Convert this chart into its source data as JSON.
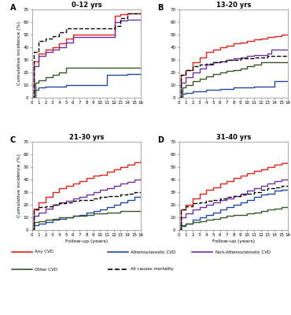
{
  "panels": [
    {
      "label": "A",
      "title": "0-12 yrs",
      "ylim": [
        0,
        70
      ],
      "curves": {
        "any_cvd": {
          "x": [
            0,
            0.3,
            1,
            2,
            3,
            4,
            5,
            6,
            7,
            8,
            9,
            10,
            11,
            12,
            12.2,
            13,
            14,
            15,
            16
          ],
          "y": [
            0,
            29,
            35,
            38,
            40,
            43,
            47,
            50,
            50,
            50,
            50,
            50,
            50,
            50,
            65,
            66,
            67,
            67,
            67
          ],
          "color": "#e32119",
          "lw": 1.0
        },
        "atherosclerotic": {
          "x": [
            0,
            0.5,
            1,
            2,
            3,
            4,
            5,
            6,
            7,
            8,
            9,
            10,
            11,
            12,
            13,
            14,
            15,
            16
          ],
          "y": [
            0,
            6,
            8,
            9,
            9,
            9,
            10,
            10,
            10,
            10,
            10,
            10,
            18,
            18,
            18,
            19,
            19,
            19
          ],
          "color": "#1f49a0",
          "lw": 1.0
        },
        "non_atherosclerotic": {
          "x": [
            0,
            0.3,
            1,
            2,
            3,
            4,
            5,
            6,
            7,
            8,
            9,
            10,
            11,
            12,
            12.2,
            13,
            14,
            15,
            16
          ],
          "y": [
            0,
            25,
            33,
            36,
            38,
            40,
            44,
            48,
            48,
            48,
            48,
            48,
            48,
            48,
            60,
            61,
            62,
            62,
            62
          ],
          "color": "#7030a0",
          "lw": 1.0
        },
        "other_cvd": {
          "x": [
            0,
            0.5,
            1,
            2,
            3,
            4,
            5,
            6,
            7,
            8,
            9,
            10,
            11,
            12,
            13,
            14,
            15,
            16
          ],
          "y": [
            0,
            12,
            14,
            16,
            18,
            20,
            24,
            24,
            24,
            24,
            24,
            24,
            24,
            24,
            24,
            24,
            24,
            24
          ],
          "color": "#375623",
          "lw": 1.0
        },
        "mortality": {
          "x": [
            0,
            0.3,
            1,
            2,
            3,
            4,
            5,
            6,
            7,
            8,
            9,
            10,
            11,
            12,
            12.2,
            13,
            14,
            15,
            16
          ],
          "y": [
            0,
            36,
            45,
            47,
            49,
            52,
            55,
            55,
            55,
            55,
            55,
            55,
            55,
            55,
            57,
            63,
            67,
            67,
            67
          ],
          "color": "#000000",
          "lw": 1.0,
          "linestyle": "--"
        }
      }
    },
    {
      "label": "B",
      "title": "13-20 yrs",
      "ylim": [
        0,
        70
      ],
      "curves": {
        "any_cvd": {
          "x": [
            0,
            0.3,
            1,
            2,
            3,
            4,
            5,
            6,
            7,
            8,
            9,
            10,
            11,
            12,
            13,
            14,
            15,
            16
          ],
          "y": [
            0,
            18,
            22,
            28,
            32,
            36,
            38,
            40,
            41,
            43,
            44,
            45,
            46,
            47,
            48,
            49,
            50,
            50
          ],
          "color": "#e32119",
          "lw": 1.0
        },
        "atherosclerotic": {
          "x": [
            0,
            0.5,
            1,
            2,
            3,
            4,
            5,
            6,
            7,
            8,
            9,
            10,
            11,
            12,
            13,
            14,
            15,
            16
          ],
          "y": [
            0,
            3,
            4,
            5,
            5,
            6,
            6,
            7,
            7,
            8,
            8,
            8,
            9,
            9,
            9,
            13,
            13,
            13
          ],
          "color": "#1f49a0",
          "lw": 1.0
        },
        "non_atherosclerotic": {
          "x": [
            0,
            0.3,
            1,
            2,
            3,
            4,
            5,
            6,
            7,
            8,
            9,
            10,
            11,
            12,
            13,
            13.5,
            14,
            15,
            16
          ],
          "y": [
            0,
            12,
            16,
            20,
            23,
            26,
            28,
            29,
            30,
            31,
            32,
            33,
            34,
            34,
            35,
            38,
            38,
            38,
            38
          ],
          "color": "#7030a0",
          "lw": 1.0
        },
        "other_cvd": {
          "x": [
            0,
            0.5,
            1,
            2,
            3,
            4,
            5,
            6,
            7,
            8,
            9,
            10,
            11,
            12,
            13,
            14,
            15,
            16
          ],
          "y": [
            0,
            8,
            10,
            13,
            15,
            17,
            19,
            20,
            21,
            22,
            23,
            25,
            26,
            28,
            28,
            28,
            28,
            28
          ],
          "color": "#375623",
          "lw": 1.0
        },
        "mortality": {
          "x": [
            0,
            0.3,
            1,
            2,
            3,
            4,
            5,
            6,
            7,
            8,
            9,
            10,
            11,
            12,
            13,
            14,
            15,
            16
          ],
          "y": [
            0,
            18,
            22,
            25,
            26,
            27,
            28,
            29,
            30,
            30,
            31,
            31,
            32,
            32,
            33,
            33,
            33,
            33
          ],
          "color": "#000000",
          "lw": 1.0,
          "linestyle": "--"
        }
      }
    },
    {
      "label": "C",
      "title": "21-30 yrs",
      "ylim": [
        0,
        70
      ],
      "curves": {
        "any_cvd": {
          "x": [
            0,
            0.3,
            1,
            2,
            3,
            4,
            5,
            6,
            7,
            8,
            9,
            10,
            11,
            12,
            13,
            14,
            15,
            16
          ],
          "y": [
            0,
            17,
            22,
            26,
            30,
            33,
            35,
            37,
            39,
            41,
            43,
            44,
            46,
            48,
            50,
            52,
            54,
            56
          ],
          "color": "#e32119",
          "lw": 1.0
        },
        "atherosclerotic": {
          "x": [
            0,
            0.3,
            1,
            2,
            3,
            4,
            5,
            6,
            7,
            8,
            9,
            10,
            11,
            12,
            13,
            14,
            15,
            16
          ],
          "y": [
            0,
            4,
            5,
            6,
            8,
            9,
            10,
            11,
            12,
            14,
            15,
            16,
            18,
            20,
            22,
            24,
            26,
            28
          ],
          "color": "#1f49a0",
          "lw": 1.0
        },
        "non_atherosclerotic": {
          "x": [
            0,
            0.3,
            1,
            2,
            3,
            4,
            5,
            6,
            7,
            8,
            9,
            10,
            11,
            12,
            13,
            14,
            15,
            16
          ],
          "y": [
            0,
            11,
            14,
            17,
            20,
            22,
            23,
            25,
            26,
            28,
            30,
            32,
            33,
            35,
            37,
            38,
            40,
            41
          ],
          "color": "#7030a0",
          "lw": 1.0
        },
        "other_cvd": {
          "x": [
            0,
            0.3,
            1,
            2,
            3,
            4,
            5,
            6,
            7,
            8,
            9,
            10,
            11,
            12,
            13,
            14,
            15,
            16
          ],
          "y": [
            0,
            6,
            7,
            8,
            9,
            10,
            10,
            11,
            11,
            12,
            13,
            13,
            14,
            14,
            15,
            15,
            15,
            15
          ],
          "color": "#375623",
          "lw": 1.0
        },
        "mortality": {
          "x": [
            0,
            0.3,
            1,
            2,
            3,
            4,
            5,
            6,
            7,
            8,
            9,
            10,
            11,
            12,
            13,
            14,
            15,
            16
          ],
          "y": [
            0,
            16,
            18,
            19,
            20,
            21,
            22,
            23,
            24,
            24,
            25,
            26,
            27,
            27,
            28,
            29,
            30,
            30
          ],
          "color": "#000000",
          "lw": 1.0,
          "linestyle": "--"
        }
      }
    },
    {
      "label": "D",
      "title": "31-40 yrs",
      "ylim": [
        0,
        70
      ],
      "curves": {
        "any_cvd": {
          "x": [
            0,
            0.3,
            1,
            2,
            3,
            4,
            5,
            6,
            7,
            8,
            9,
            10,
            11,
            12,
            13,
            14,
            15,
            16
          ],
          "y": [
            0,
            16,
            20,
            25,
            29,
            32,
            34,
            37,
            39,
            41,
            43,
            45,
            47,
            48,
            50,
            52,
            53,
            54
          ],
          "color": "#e32119",
          "lw": 1.0
        },
        "atherosclerotic": {
          "x": [
            0,
            0.3,
            1,
            2,
            3,
            4,
            5,
            6,
            7,
            8,
            9,
            10,
            11,
            12,
            13,
            14,
            15,
            16
          ],
          "y": [
            0,
            3,
            5,
            8,
            10,
            12,
            14,
            16,
            18,
            20,
            22,
            24,
            26,
            28,
            29,
            31,
            32,
            32
          ],
          "color": "#1f49a0",
          "lw": 1.0
        },
        "non_atherosclerotic": {
          "x": [
            0,
            0.3,
            1,
            2,
            3,
            4,
            5,
            6,
            7,
            8,
            9,
            10,
            11,
            12,
            13,
            14,
            15,
            16
          ],
          "y": [
            0,
            10,
            13,
            16,
            18,
            20,
            22,
            24,
            25,
            27,
            29,
            31,
            33,
            35,
            37,
            39,
            40,
            41
          ],
          "color": "#7030a0",
          "lw": 1.0
        },
        "other_cvd": {
          "x": [
            0,
            0.3,
            1,
            2,
            3,
            4,
            5,
            6,
            7,
            8,
            9,
            10,
            11,
            12,
            13,
            14,
            15,
            16
          ],
          "y": [
            0,
            4,
            5,
            6,
            7,
            8,
            9,
            10,
            11,
            12,
            12,
            13,
            14,
            15,
            16,
            17,
            18,
            18
          ],
          "color": "#375623",
          "lw": 1.0
        },
        "mortality": {
          "x": [
            0,
            0.3,
            1,
            2,
            3,
            4,
            5,
            6,
            7,
            8,
            9,
            10,
            11,
            12,
            13,
            14,
            15,
            16
          ],
          "y": [
            0,
            16,
            19,
            21,
            22,
            23,
            24,
            25,
            26,
            27,
            28,
            29,
            30,
            32,
            33,
            34,
            35,
            35
          ],
          "color": "#000000",
          "lw": 1.0,
          "linestyle": "--"
        }
      }
    }
  ],
  "legend_entries": [
    {
      "label": "Any CVD",
      "color": "#e32119",
      "linestyle": "-"
    },
    {
      "label": "Atherosclerostic CVD",
      "color": "#1f49a0",
      "linestyle": "-"
    },
    {
      "label": "Non-Atherosclerostic CVD",
      "color": "#7030a0",
      "linestyle": "-"
    },
    {
      "label": "Other CVD",
      "color": "#375623",
      "linestyle": "-"
    },
    {
      "label": "All causes mortality",
      "color": "#000000",
      "linestyle": "--"
    }
  ],
  "xlabel": "Follow-up (years)",
  "ylabel": "Cumulative incidence (%)",
  "xticks": [
    0,
    1,
    2,
    3,
    4,
    5,
    6,
    7,
    8,
    9,
    10,
    11,
    12,
    13,
    14,
    15,
    16
  ],
  "yticks": [
    0,
    10,
    20,
    30,
    40,
    50,
    60,
    70
  ],
  "bg_color": "#ffffff"
}
